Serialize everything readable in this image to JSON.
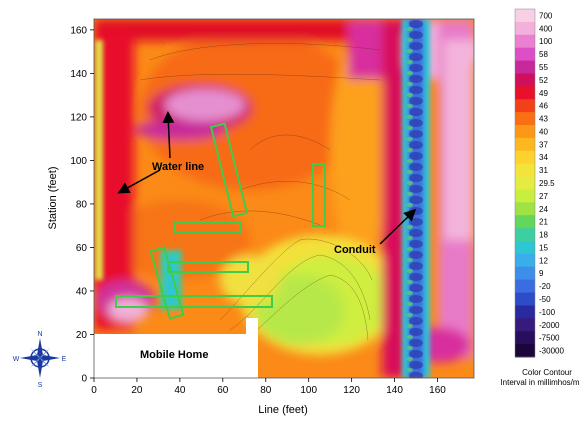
{
  "map": {
    "xlabel": "Line (feet)",
    "ylabel": "Station (feet)",
    "x_ticks": [
      0,
      20,
      40,
      60,
      80,
      100,
      120,
      140,
      160
    ],
    "y_ticks": [
      0,
      20,
      40,
      60,
      80,
      100,
      120,
      140,
      160
    ],
    "xlim": [
      0,
      177
    ],
    "ylim": [
      0,
      165
    ],
    "annotations": {
      "water_line": "Water line",
      "conduit": "Conduit",
      "mobile_home": "Mobile Home"
    },
    "compass": {
      "n": "N",
      "s": "S",
      "e": "E",
      "w": "W",
      "icon": "compass-rose-icon"
    }
  },
  "legend": {
    "labels": [
      "700",
      "400",
      "100",
      "58",
      "55",
      "52",
      "49",
      "46",
      "43",
      "40",
      "37",
      "34",
      "31",
      "29.5",
      "27",
      "24",
      "21",
      "18",
      "15",
      "12",
      "9",
      "-20",
      "-50",
      "-100",
      "-2000",
      "-7500",
      "-30000"
    ],
    "colors": [
      "#f7d0e6",
      "#f3b0da",
      "#ec80d0",
      "#dc4fc6",
      "#c8299a",
      "#d0105a",
      "#e8102a",
      "#f24018",
      "#fa6e14",
      "#fd9816",
      "#fdb820",
      "#fdd22c",
      "#f3e33a",
      "#e4ec40",
      "#c8ee3e",
      "#9ee245",
      "#63d65b",
      "#3ecfa0",
      "#2ec6d2",
      "#3aaee8",
      "#3c8ee8",
      "#3a6ee0",
      "#2c4cc8",
      "#2a2aa0",
      "#361a7c",
      "#2a0e5e",
      "#1a063a"
    ],
    "title_line1": "Color Contour",
    "title_line2": "Interval in millimhos/m"
  }
}
